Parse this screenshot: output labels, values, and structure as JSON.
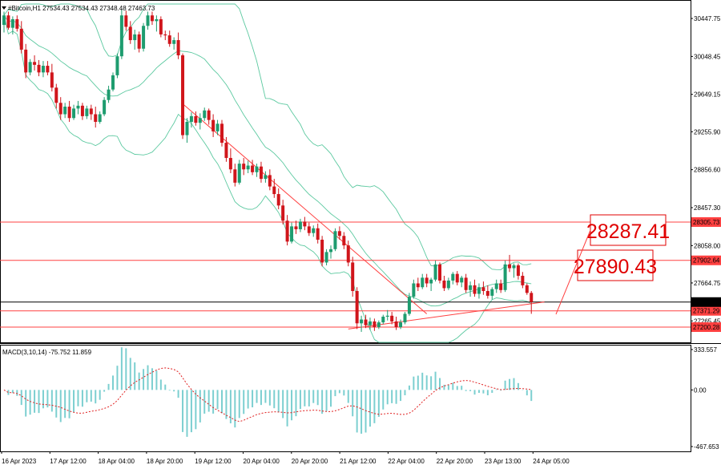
{
  "chart_data": {
    "type": "candlestick",
    "header": "#Bitcoin,H1 27534.43 27534.43 27348.48 27463.73",
    "symbol": "#Bitcoin",
    "timeframe": "H1",
    "last_bar": {
      "open": 27534.43,
      "high": 27534.43,
      "low": 27348.48,
      "close": 27463.73
    },
    "price_axis_ticks": [
      "30447.75",
      "30048.45",
      "29649.15",
      "29255.90",
      "28856.60",
      "28457.30",
      "28058.00",
      "27664.75",
      "27265.45"
    ],
    "price_range": [
      27040,
      30600
    ],
    "time_axis_ticks": [
      "16 Apr 2023",
      "17 Apr 12:00",
      "18 Apr 04:00",
      "18 Apr 20:00",
      "19 Apr 12:00",
      "20 Apr 04:00",
      "20 Apr 20:00",
      "21 Apr 12:00",
      "22 Apr 04:00",
      "22 Apr 20:00",
      "23 Apr 13:00",
      "24 Apr 05:00"
    ],
    "current_price": {
      "value": 27463.73,
      "label": "27463.73"
    },
    "horizontal_levels": [
      {
        "value": 28305.73,
        "label": "28305.73",
        "color": "#ff4040"
      },
      {
        "value": 27902.64,
        "label": "27902.64",
        "color": "#ff4040"
      },
      {
        "value": 27371.29,
        "label": "27371.29",
        "color": "#ff4040"
      },
      {
        "value": 27200.28,
        "label": "27200.28",
        "color": "#ff4040"
      }
    ],
    "callouts": [
      {
        "text": "28287.41",
        "color": "#e00000"
      },
      {
        "text": "27890.43",
        "color": "#e00000"
      }
    ],
    "trendlines": [
      {
        "from": {
          "bar": 41,
          "price": 29550
        },
        "to": {
          "bar": 97,
          "price": 27340
        }
      },
      {
        "from": {
          "bar": 79,
          "price": 27180
        },
        "to": {
          "bar": 124,
          "price": 27465
        }
      }
    ],
    "indicator": "Bollinger Bands",
    "colors": {
      "bull": "#1e9c6f",
      "bear": "#d0151b",
      "band": "#5cc9a0",
      "level": "#ff4040",
      "macd_hist": "#7ccfd0",
      "macd_signal": "#e02020"
    },
    "macd": {
      "label": "MACD(3,10,14) -75.752 11.859",
      "params": [
        3,
        10,
        14
      ],
      "value": -75.752,
      "signal": 11.859,
      "axis_ticks": [
        "333.557",
        "0.00",
        "-467.653"
      ],
      "range": [
        -467.653,
        333.557
      ]
    },
    "candles": [
      {
        "o": 30380,
        "h": 30520,
        "l": 30300,
        "c": 30480
      },
      {
        "o": 30480,
        "h": 30520,
        "l": 30330,
        "c": 30350
      },
      {
        "o": 30350,
        "h": 30470,
        "l": 30280,
        "c": 30440
      },
      {
        "o": 30440,
        "h": 30480,
        "l": 30310,
        "c": 30340
      },
      {
        "o": 30340,
        "h": 30420,
        "l": 30080,
        "c": 30120
      },
      {
        "o": 30120,
        "h": 30180,
        "l": 29820,
        "c": 29880
      },
      {
        "o": 29880,
        "h": 30020,
        "l": 29850,
        "c": 29990
      },
      {
        "o": 29990,
        "h": 30060,
        "l": 29900,
        "c": 29960
      },
      {
        "o": 29960,
        "h": 30010,
        "l": 29840,
        "c": 29880
      },
      {
        "o": 29880,
        "h": 30000,
        "l": 29830,
        "c": 29950
      },
      {
        "o": 29950,
        "h": 30000,
        "l": 29850,
        "c": 29880
      },
      {
        "o": 29880,
        "h": 29970,
        "l": 29680,
        "c": 29720
      },
      {
        "o": 29720,
        "h": 29760,
        "l": 29500,
        "c": 29560
      },
      {
        "o": 29560,
        "h": 29620,
        "l": 29380,
        "c": 29440
      },
      {
        "o": 29440,
        "h": 29560,
        "l": 29400,
        "c": 29520
      },
      {
        "o": 29520,
        "h": 29580,
        "l": 29360,
        "c": 29400
      },
      {
        "o": 29400,
        "h": 29540,
        "l": 29380,
        "c": 29500
      },
      {
        "o": 29500,
        "h": 29580,
        "l": 29440,
        "c": 29530
      },
      {
        "o": 29530,
        "h": 29560,
        "l": 29380,
        "c": 29420
      },
      {
        "o": 29420,
        "h": 29530,
        "l": 29390,
        "c": 29500
      },
      {
        "o": 29500,
        "h": 29540,
        "l": 29380,
        "c": 29440
      },
      {
        "o": 29440,
        "h": 29520,
        "l": 29300,
        "c": 29360
      },
      {
        "o": 29360,
        "h": 29470,
        "l": 29340,
        "c": 29440
      },
      {
        "o": 29440,
        "h": 29620,
        "l": 29420,
        "c": 29590
      },
      {
        "o": 29590,
        "h": 29740,
        "l": 29560,
        "c": 29700
      },
      {
        "o": 29700,
        "h": 29880,
        "l": 29680,
        "c": 29850
      },
      {
        "o": 29850,
        "h": 30080,
        "l": 29820,
        "c": 30050
      },
      {
        "o": 30050,
        "h": 30540,
        "l": 30020,
        "c": 30480
      },
      {
        "o": 30480,
        "h": 30530,
        "l": 30320,
        "c": 30360
      },
      {
        "o": 30360,
        "h": 30420,
        "l": 30180,
        "c": 30220
      },
      {
        "o": 30220,
        "h": 30330,
        "l": 30120,
        "c": 30280
      },
      {
        "o": 30280,
        "h": 30310,
        "l": 30090,
        "c": 30130
      },
      {
        "o": 30130,
        "h": 30400,
        "l": 30100,
        "c": 30370
      },
      {
        "o": 30370,
        "h": 30520,
        "l": 30330,
        "c": 30480
      },
      {
        "o": 30480,
        "h": 30520,
        "l": 30380,
        "c": 30420
      },
      {
        "o": 30420,
        "h": 30480,
        "l": 30310,
        "c": 30440
      },
      {
        "o": 30440,
        "h": 30470,
        "l": 30250,
        "c": 30280
      },
      {
        "o": 30280,
        "h": 30320,
        "l": 30220,
        "c": 30270
      },
      {
        "o": 30270,
        "h": 30320,
        "l": 30150,
        "c": 30180
      },
      {
        "o": 30180,
        "h": 30250,
        "l": 30120,
        "c": 30220
      },
      {
        "o": 30220,
        "h": 30300,
        "l": 30020,
        "c": 30060
      },
      {
        "o": 30060,
        "h": 30080,
        "l": 29180,
        "c": 29220
      },
      {
        "o": 29220,
        "h": 29400,
        "l": 29140,
        "c": 29360
      },
      {
        "o": 29360,
        "h": 29460,
        "l": 29300,
        "c": 29420
      },
      {
        "o": 29420,
        "h": 29470,
        "l": 29320,
        "c": 29350
      },
      {
        "o": 29350,
        "h": 29450,
        "l": 29280,
        "c": 29400
      },
      {
        "o": 29400,
        "h": 29510,
        "l": 29370,
        "c": 29480
      },
      {
        "o": 29480,
        "h": 29500,
        "l": 29330,
        "c": 29380
      },
      {
        "o": 29380,
        "h": 29440,
        "l": 29200,
        "c": 29260
      },
      {
        "o": 29260,
        "h": 29380,
        "l": 29220,
        "c": 29340
      },
      {
        "o": 29340,
        "h": 29380,
        "l": 29100,
        "c": 29140
      },
      {
        "o": 29140,
        "h": 29200,
        "l": 28940,
        "c": 28980
      },
      {
        "o": 28980,
        "h": 29080,
        "l": 28820,
        "c": 28860
      },
      {
        "o": 28860,
        "h": 28920,
        "l": 28680,
        "c": 28720
      },
      {
        "o": 28720,
        "h": 28960,
        "l": 28700,
        "c": 28920
      },
      {
        "o": 28920,
        "h": 28980,
        "l": 28800,
        "c": 28860
      },
      {
        "o": 28860,
        "h": 28950,
        "l": 28820,
        "c": 28900
      },
      {
        "o": 28900,
        "h": 28960,
        "l": 28800,
        "c": 28830
      },
      {
        "o": 28830,
        "h": 28920,
        "l": 28780,
        "c": 28890
      },
      {
        "o": 28890,
        "h": 28940,
        "l": 28720,
        "c": 28760
      },
      {
        "o": 28760,
        "h": 28840,
        "l": 28720,
        "c": 28800
      },
      {
        "o": 28800,
        "h": 28860,
        "l": 28640,
        "c": 28680
      },
      {
        "o": 28680,
        "h": 28760,
        "l": 28560,
        "c": 28600
      },
      {
        "o": 28600,
        "h": 28660,
        "l": 28440,
        "c": 28480
      },
      {
        "o": 28480,
        "h": 28540,
        "l": 28280,
        "c": 28320
      },
      {
        "o": 28320,
        "h": 28380,
        "l": 28060,
        "c": 28100
      },
      {
        "o": 28100,
        "h": 28300,
        "l": 28080,
        "c": 28260
      },
      {
        "o": 28260,
        "h": 28320,
        "l": 28180,
        "c": 28230
      },
      {
        "o": 28230,
        "h": 28340,
        "l": 28200,
        "c": 28310
      },
      {
        "o": 28310,
        "h": 28360,
        "l": 28220,
        "c": 28260
      },
      {
        "o": 28260,
        "h": 28300,
        "l": 28160,
        "c": 28190
      },
      {
        "o": 28190,
        "h": 28270,
        "l": 28150,
        "c": 28240
      },
      {
        "o": 28240,
        "h": 28290,
        "l": 28080,
        "c": 28120
      },
      {
        "o": 28120,
        "h": 28160,
        "l": 27840,
        "c": 27880
      },
      {
        "o": 27880,
        "h": 28020,
        "l": 27850,
        "c": 27990
      },
      {
        "o": 27990,
        "h": 28060,
        "l": 27920,
        "c": 28020
      },
      {
        "o": 28020,
        "h": 28240,
        "l": 28000,
        "c": 28210
      },
      {
        "o": 28210,
        "h": 28260,
        "l": 28120,
        "c": 28160
      },
      {
        "o": 28160,
        "h": 28200,
        "l": 28020,
        "c": 28060
      },
      {
        "o": 28060,
        "h": 28110,
        "l": 27840,
        "c": 27880
      },
      {
        "o": 27880,
        "h": 27940,
        "l": 27520,
        "c": 27580
      },
      {
        "o": 27580,
        "h": 27620,
        "l": 27180,
        "c": 27240
      },
      {
        "o": 27240,
        "h": 27320,
        "l": 27150,
        "c": 27280
      },
      {
        "o": 27280,
        "h": 27330,
        "l": 27190,
        "c": 27220
      },
      {
        "o": 27220,
        "h": 27300,
        "l": 27170,
        "c": 27260
      },
      {
        "o": 27260,
        "h": 27290,
        "l": 27160,
        "c": 27200
      },
      {
        "o": 27200,
        "h": 27270,
        "l": 27180,
        "c": 27250
      },
      {
        "o": 27250,
        "h": 27330,
        "l": 27230,
        "c": 27310
      },
      {
        "o": 27310,
        "h": 27380,
        "l": 27270,
        "c": 27320
      },
      {
        "o": 27320,
        "h": 27360,
        "l": 27230,
        "c": 27260
      },
      {
        "o": 27260,
        "h": 27310,
        "l": 27170,
        "c": 27200
      },
      {
        "o": 27200,
        "h": 27280,
        "l": 27180,
        "c": 27250
      },
      {
        "o": 27250,
        "h": 27360,
        "l": 27230,
        "c": 27340
      },
      {
        "o": 27340,
        "h": 27560,
        "l": 27320,
        "c": 27520
      },
      {
        "o": 27520,
        "h": 27700,
        "l": 27500,
        "c": 27660
      },
      {
        "o": 27660,
        "h": 27720,
        "l": 27580,
        "c": 27620
      },
      {
        "o": 27620,
        "h": 27760,
        "l": 27600,
        "c": 27720
      },
      {
        "o": 27720,
        "h": 27760,
        "l": 27620,
        "c": 27660
      },
      {
        "o": 27660,
        "h": 27720,
        "l": 27580,
        "c": 27700
      },
      {
        "o": 27700,
        "h": 27900,
        "l": 27680,
        "c": 27860
      },
      {
        "o": 27860,
        "h": 27880,
        "l": 27660,
        "c": 27690
      },
      {
        "o": 27690,
        "h": 27740,
        "l": 27580,
        "c": 27610
      },
      {
        "o": 27610,
        "h": 27720,
        "l": 27590,
        "c": 27690
      },
      {
        "o": 27690,
        "h": 27780,
        "l": 27650,
        "c": 27760
      },
      {
        "o": 27760,
        "h": 27790,
        "l": 27640,
        "c": 27670
      },
      {
        "o": 27670,
        "h": 27740,
        "l": 27620,
        "c": 27720
      },
      {
        "o": 27720,
        "h": 27760,
        "l": 27560,
        "c": 27590
      },
      {
        "o": 27590,
        "h": 27680,
        "l": 27520,
        "c": 27640
      },
      {
        "o": 27640,
        "h": 27700,
        "l": 27520,
        "c": 27550
      },
      {
        "o": 27550,
        "h": 27660,
        "l": 27500,
        "c": 27620
      },
      {
        "o": 27620,
        "h": 27680,
        "l": 27540,
        "c": 27580
      },
      {
        "o": 27580,
        "h": 27640,
        "l": 27500,
        "c": 27530
      },
      {
        "o": 27530,
        "h": 27620,
        "l": 27490,
        "c": 27600
      },
      {
        "o": 27600,
        "h": 27700,
        "l": 27560,
        "c": 27660
      },
      {
        "o": 27660,
        "h": 27700,
        "l": 27560,
        "c": 27590
      },
      {
        "o": 27590,
        "h": 27900,
        "l": 27570,
        "c": 27860
      },
      {
        "o": 27860,
        "h": 27960,
        "l": 27780,
        "c": 27820
      },
      {
        "o": 27820,
        "h": 27870,
        "l": 27720,
        "c": 27850
      },
      {
        "o": 27850,
        "h": 27870,
        "l": 27700,
        "c": 27740
      },
      {
        "o": 27740,
        "h": 27780,
        "l": 27610,
        "c": 27640
      },
      {
        "o": 27640,
        "h": 27660,
        "l": 27540,
        "c": 27560
      },
      {
        "o": 27560,
        "h": 27580,
        "l": 27340,
        "c": 27463.73
      }
    ]
  }
}
